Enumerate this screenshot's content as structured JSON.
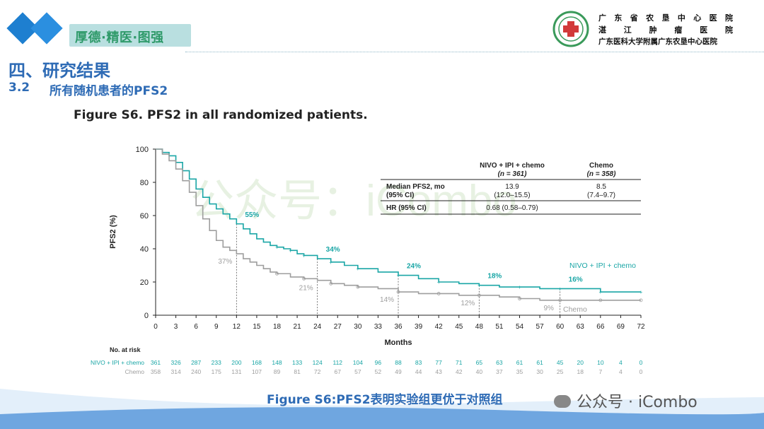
{
  "header": {
    "tagline": "厚德·精医·图强",
    "hospital_lines": [
      "广 东 省 农 垦 中 心 医 院",
      "湛 江 肿 瘤 医 院",
      "广东医科大学附属广东农垦中心医院"
    ]
  },
  "section": {
    "title": "四、研究结果",
    "sub_number": "3.2",
    "sub_title": "所有随机患者的PFS2"
  },
  "figure_title": "Figure S6. PFS2 in all randomized patients.",
  "caption": "Figure S6:PFS2表明实验组更优于对照组",
  "watermark_bottom": "公众号 · iCombo",
  "watermark_center": "公众号：iCombo",
  "colors": {
    "nivo": "#1aa6a6",
    "chemo": "#9e9e9e",
    "title_blue": "#2e6bb5",
    "tagline_green": "#2f9a6a"
  },
  "table": {
    "col1_name": "NIVO + IPI + chemo",
    "col1_n": "(n = 361)",
    "col2_name": "Chemo",
    "col2_n": "(n = 358)",
    "row1_label_1": "Median PFS2, mo",
    "row1_label_2": "(95% CI)",
    "row1_v1": "13.9",
    "row1_v1_ci": "(12.0–15.5)",
    "row1_v2": "8.5",
    "row1_v2_ci": "(7.4–9.7)",
    "row2_label": "HR (95% CI)",
    "row2_value": "0.68 (0.58–0.79)"
  },
  "chart_data": {
    "type": "line",
    "title": "Figure S6. PFS2 in all randomized patients.",
    "xlabel": "Months",
    "ylabel": "PFS2 (%)",
    "xlim": [
      0,
      72
    ],
    "ylim": [
      0,
      100
    ],
    "x_ticks": [
      0,
      3,
      6,
      9,
      12,
      15,
      18,
      21,
      24,
      27,
      30,
      33,
      36,
      39,
      42,
      45,
      48,
      51,
      54,
      57,
      60,
      63,
      66,
      69,
      72
    ],
    "y_ticks": [
      0,
      20,
      40,
      60,
      80,
      100
    ],
    "series": [
      {
        "name": "NIVO + IPI + chemo",
        "color": "#1aa6a6",
        "x": [
          0,
          1,
          2,
          3,
          4,
          5,
          6,
          7,
          8,
          9,
          10,
          11,
          12,
          13,
          14,
          15,
          16,
          17,
          18,
          19,
          20,
          21,
          22,
          24,
          26,
          28,
          30,
          33,
          36,
          39,
          42,
          45,
          48,
          51,
          54,
          57,
          60,
          63,
          66,
          69,
          72
        ],
        "y": [
          100,
          98,
          96,
          92,
          87,
          82,
          76,
          71,
          67,
          64,
          61,
          58,
          55,
          52,
          49,
          46,
          44,
          42,
          41,
          40,
          39,
          37,
          36,
          34,
          32,
          30,
          28,
          26,
          24,
          22,
          20,
          19,
          18,
          17,
          17,
          16,
          16,
          16,
          14,
          14,
          14
        ]
      },
      {
        "name": "Chemo",
        "color": "#9e9e9e",
        "x": [
          0,
          1,
          2,
          3,
          4,
          5,
          6,
          7,
          8,
          9,
          10,
          11,
          12,
          13,
          14,
          15,
          16,
          17,
          18,
          20,
          22,
          24,
          26,
          28,
          30,
          33,
          36,
          39,
          42,
          45,
          48,
          51,
          54,
          57,
          60,
          63,
          66,
          69,
          72
        ],
        "y": [
          100,
          97,
          93,
          88,
          81,
          74,
          66,
          58,
          51,
          45,
          41,
          39,
          37,
          34,
          32,
          30,
          28,
          26,
          25,
          23,
          22,
          21,
          19,
          18,
          17,
          16,
          14,
          13,
          13,
          12,
          12,
          11,
          10,
          9,
          9,
          9,
          9,
          9,
          9
        ]
      }
    ],
    "annotations": [
      {
        "series": "NIVO + IPI + chemo",
        "x": 12,
        "y": 55,
        "text": "55%"
      },
      {
        "series": "NIVO + IPI + chemo",
        "x": 24,
        "y": 34,
        "text": "34%"
      },
      {
        "series": "NIVO + IPI + chemo",
        "x": 36,
        "y": 24,
        "text": "24%"
      },
      {
        "series": "NIVO + IPI + chemo",
        "x": 48,
        "y": 18,
        "text": "18%"
      },
      {
        "series": "NIVO + IPI + chemo",
        "x": 60,
        "y": 16,
        "text": "16%"
      },
      {
        "series": "Chemo",
        "x": 12,
        "y": 37,
        "text": "37%"
      },
      {
        "series": "Chemo",
        "x": 24,
        "y": 21,
        "text": "21%"
      },
      {
        "series": "Chemo",
        "x": 36,
        "y": 14,
        "text": "14%"
      },
      {
        "series": "Chemo",
        "x": 48,
        "y": 12,
        "text": "12%"
      },
      {
        "series": "Chemo",
        "x": 60,
        "y": 9,
        "text": "9%"
      }
    ],
    "series_labels": [
      "NIVO + IPI + chemo",
      "Chemo"
    ],
    "at_risk": {
      "title": "No. at risk",
      "rows": [
        {
          "name": "NIVO + IPI + chemo",
          "color": "#1aa6a6",
          "values": [
            361,
            326,
            287,
            233,
            200,
            168,
            148,
            133,
            124,
            112,
            104,
            96,
            88,
            83,
            77,
            71,
            65,
            63,
            61,
            61,
            45,
            20,
            10,
            4,
            0
          ]
        },
        {
          "name": "Chemo",
          "color": "#9e9e9e",
          "values": [
            358,
            314,
            240,
            175,
            131,
            107,
            89,
            81,
            72,
            67,
            57,
            52,
            49,
            44,
            43,
            42,
            40,
            37,
            35,
            30,
            25,
            18,
            7,
            4,
            0
          ]
        }
      ]
    }
  }
}
